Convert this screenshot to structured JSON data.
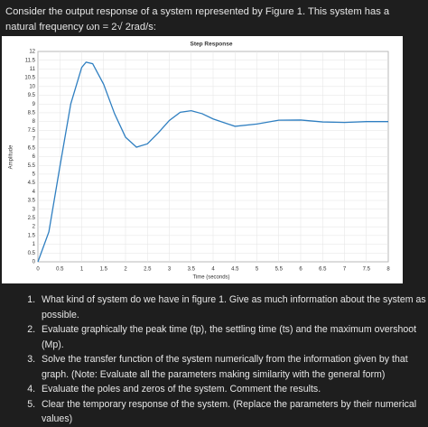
{
  "intro": "Consider the output response of a system represented by Figure 1. This system has a natural frequency ωn = 2√ 2rad/s:",
  "chart_data": {
    "type": "line",
    "title": "Step Response",
    "xlabel": "Time (seconds)",
    "ylabel": "Amplitude",
    "x": [
      0,
      0.25,
      0.5,
      0.75,
      1.0,
      1.1,
      1.25,
      1.5,
      1.75,
      2.0,
      2.25,
      2.5,
      2.75,
      3.0,
      3.25,
      3.5,
      3.75,
      4.0,
      4.5,
      5.0,
      5.5,
      6.0,
      6.5,
      7.0,
      7.5,
      8.0
    ],
    "series": [
      {
        "color": "#2f7fc1",
        "values": [
          0,
          1.71,
          5.41,
          9.01,
          11.09,
          11.39,
          11.3,
          10.13,
          8.45,
          7.11,
          6.54,
          6.73,
          7.36,
          8.06,
          8.53,
          8.62,
          8.45,
          8.15,
          7.73,
          7.86,
          8.08,
          8.09,
          7.98,
          7.95,
          8.0,
          8.0
        ]
      }
    ],
    "xlim": [
      0,
      8
    ],
    "ylim": [
      0,
      12
    ],
    "xticks": [
      0,
      0.5,
      1,
      1.5,
      2,
      2.5,
      3,
      3.5,
      4,
      4.5,
      5,
      5.5,
      6,
      6.5,
      7,
      7.5,
      8
    ],
    "yticks": [
      0,
      0.5,
      1,
      1.5,
      2,
      2.5,
      3,
      3.5,
      4,
      4.5,
      5,
      5.5,
      6,
      6.5,
      7,
      7.5,
      8,
      8.5,
      9,
      9.5,
      10,
      10.5,
      11,
      11.5,
      12
    ],
    "grid": true
  },
  "questions": [
    "What kind of system do we have in figure 1. Give as much information about the system as possible.",
    "Evaluate graphically the peak time (tp), the settling time (ts) and the maximum overshoot (Mp).",
    "Solve the transfer function of the system numerically from the information given by that graph. (Note: Evaluate all the parameters making similarity with the general form)",
    "Evaluate the poles and zeros of the system. Comment the results.",
    "Clear the temporary response of the system. (Replace the parameters by their numerical values)"
  ]
}
